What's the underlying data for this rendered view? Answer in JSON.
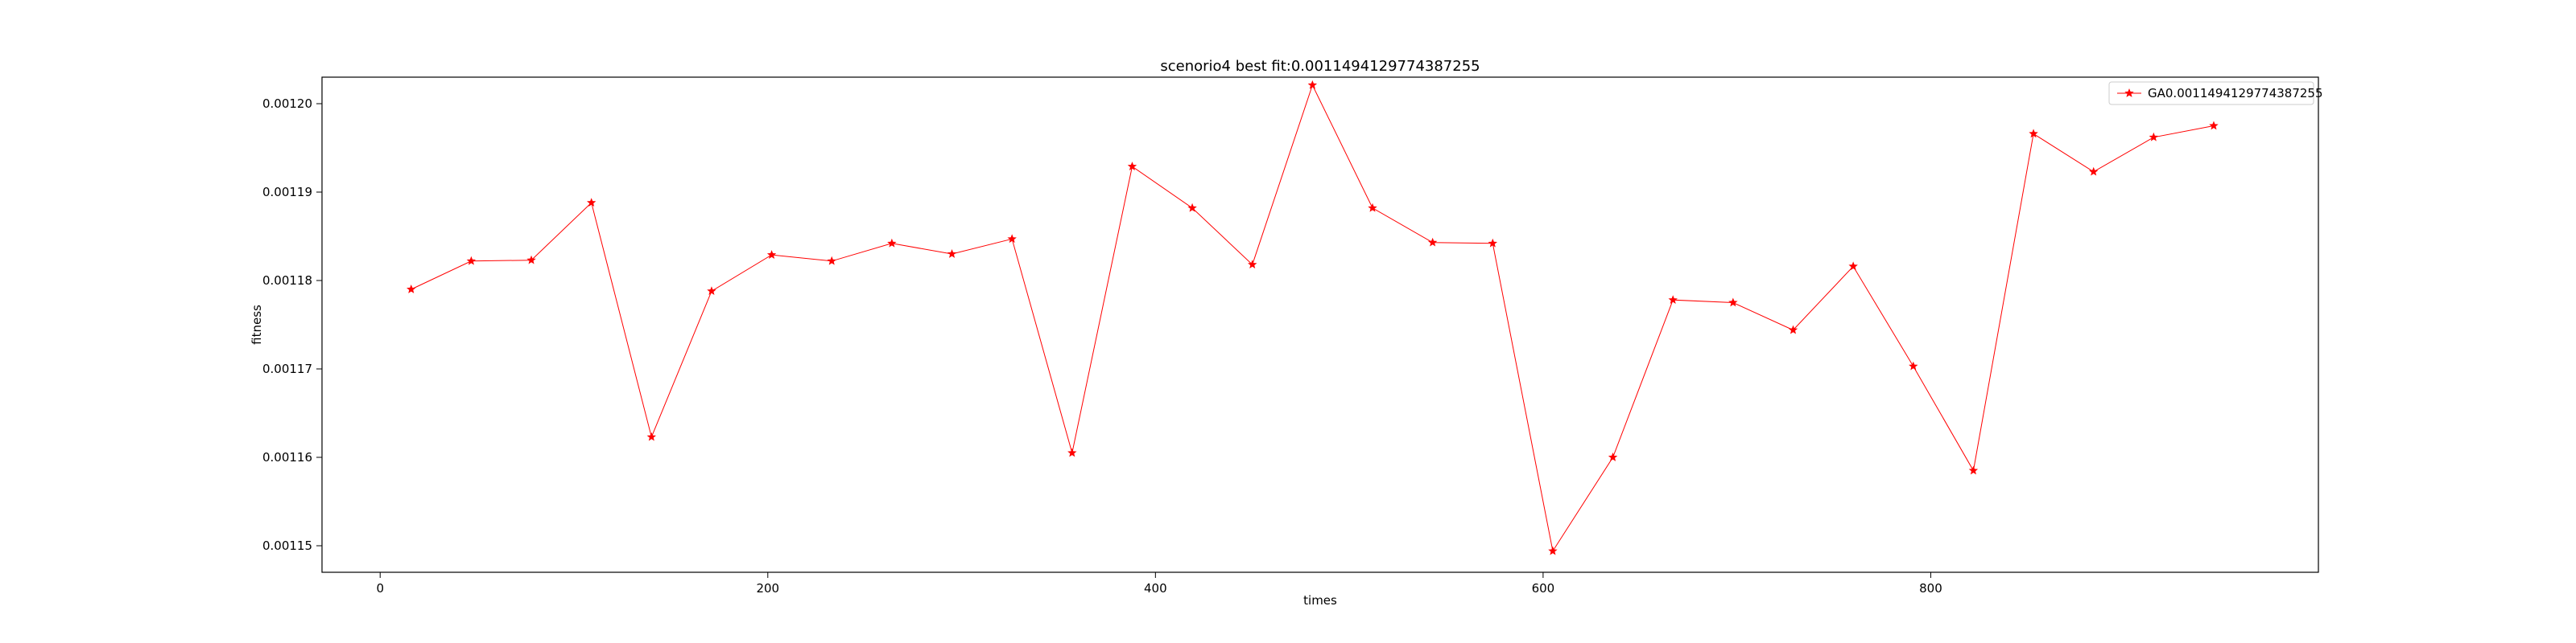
{
  "chart_data": {
    "type": "line",
    "title": "scenorio4 best fit:0.0011494129774387255",
    "xlabel": "times",
    "ylabel": "fitness",
    "xlim": [
      -30,
      1000
    ],
    "ylim": [
      0.001147,
      0.001203
    ],
    "xticks": [
      0,
      200,
      400,
      600,
      800
    ],
    "yticks": [
      0.00115,
      0.00116,
      0.00117,
      0.00118,
      0.00119,
      0.0012
    ],
    "ytick_labels": [
      "0.00115",
      "0.00116",
      "0.00117",
      "0.00118",
      "0.00119",
      "0.00120"
    ],
    "grid": false,
    "legend_position": "top-right",
    "series": [
      {
        "name": "GA0.0011494129774387255",
        "color": "#ff0000",
        "marker": "star",
        "x": [
          16,
          47,
          78,
          109,
          140,
          171,
          202,
          233,
          264,
          295,
          326,
          357,
          388,
          419,
          450,
          481,
          512,
          543,
          574,
          605,
          636,
          667,
          698,
          729,
          760,
          791,
          822,
          853,
          884,
          915,
          946
        ],
        "y": [
          0.001179,
          0.0011822,
          0.0011823,
          0.0011888,
          0.0011623,
          0.0011788,
          0.0011829,
          0.0011822,
          0.0011842,
          0.001183,
          0.0011847,
          0.0011605,
          0.0011929,
          0.0011882,
          0.0011818,
          0.0012021,
          0.0011882,
          0.0011843,
          0.0011842,
          0.0011494,
          0.00116,
          0.0011778,
          0.0011775,
          0.0011744,
          0.0011816,
          0.0011703,
          0.0011585,
          0.0011966,
          0.0011923,
          0.0011962,
          0.0011975
        ]
      }
    ]
  }
}
